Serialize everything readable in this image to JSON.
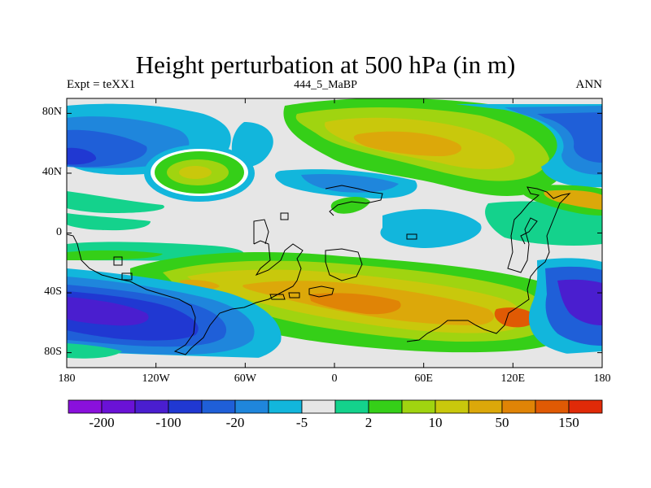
{
  "map": {
    "title": "Height perturbation at 500 hPa (in m)",
    "left_label": "Expt = teXX1",
    "center_label": "444_5_MaBP",
    "right_label": "ANN",
    "lat_ticks": [
      "80N",
      "40N",
      "0",
      "40S",
      "80S"
    ],
    "lon_ticks": [
      "180",
      "120W",
      "60W",
      "0",
      "60E",
      "120E",
      "180"
    ],
    "lat_values": [
      80,
      40,
      0,
      -40,
      -80
    ],
    "lon_values": [
      -180,
      -120,
      -60,
      0,
      60,
      120,
      180
    ]
  },
  "colorbar": {
    "labels": [
      "-200",
      "-100",
      "-20",
      "-5",
      "2",
      "10",
      "50",
      "150"
    ],
    "colors": [
      "#8a10dc",
      "#6a12d6",
      "#4a1ecf",
      "#2038d2",
      "#1f5fd8",
      "#1f86dc",
      "#12b6dc",
      "#e6e6e6",
      "#14d28c",
      "#35cf18",
      "#a0d410",
      "#c9c80c",
      "#dca80a",
      "#e08406",
      "#e05a04",
      "#e02a08"
    ]
  },
  "colors": {
    "land_outline": "#000000"
  }
}
